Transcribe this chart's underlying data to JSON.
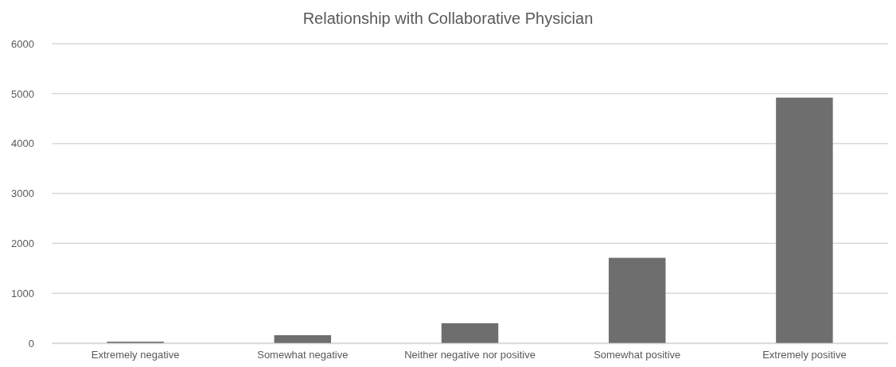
{
  "chart_data": {
    "type": "bar",
    "title": "Relationship with Collaborative Physician",
    "categories": [
      "Extremely negative",
      "Somewhat negative",
      "Neither negative nor positive",
      "Somewhat positive",
      "Extremely positive"
    ],
    "values": [
      30,
      160,
      400,
      1710,
      4920
    ],
    "color": "#6e6e6e",
    "ylim": [
      0,
      6000
    ],
    "yticks": [
      0,
      1000,
      2000,
      3000,
      4000,
      5000,
      6000
    ],
    "grid": "y"
  }
}
